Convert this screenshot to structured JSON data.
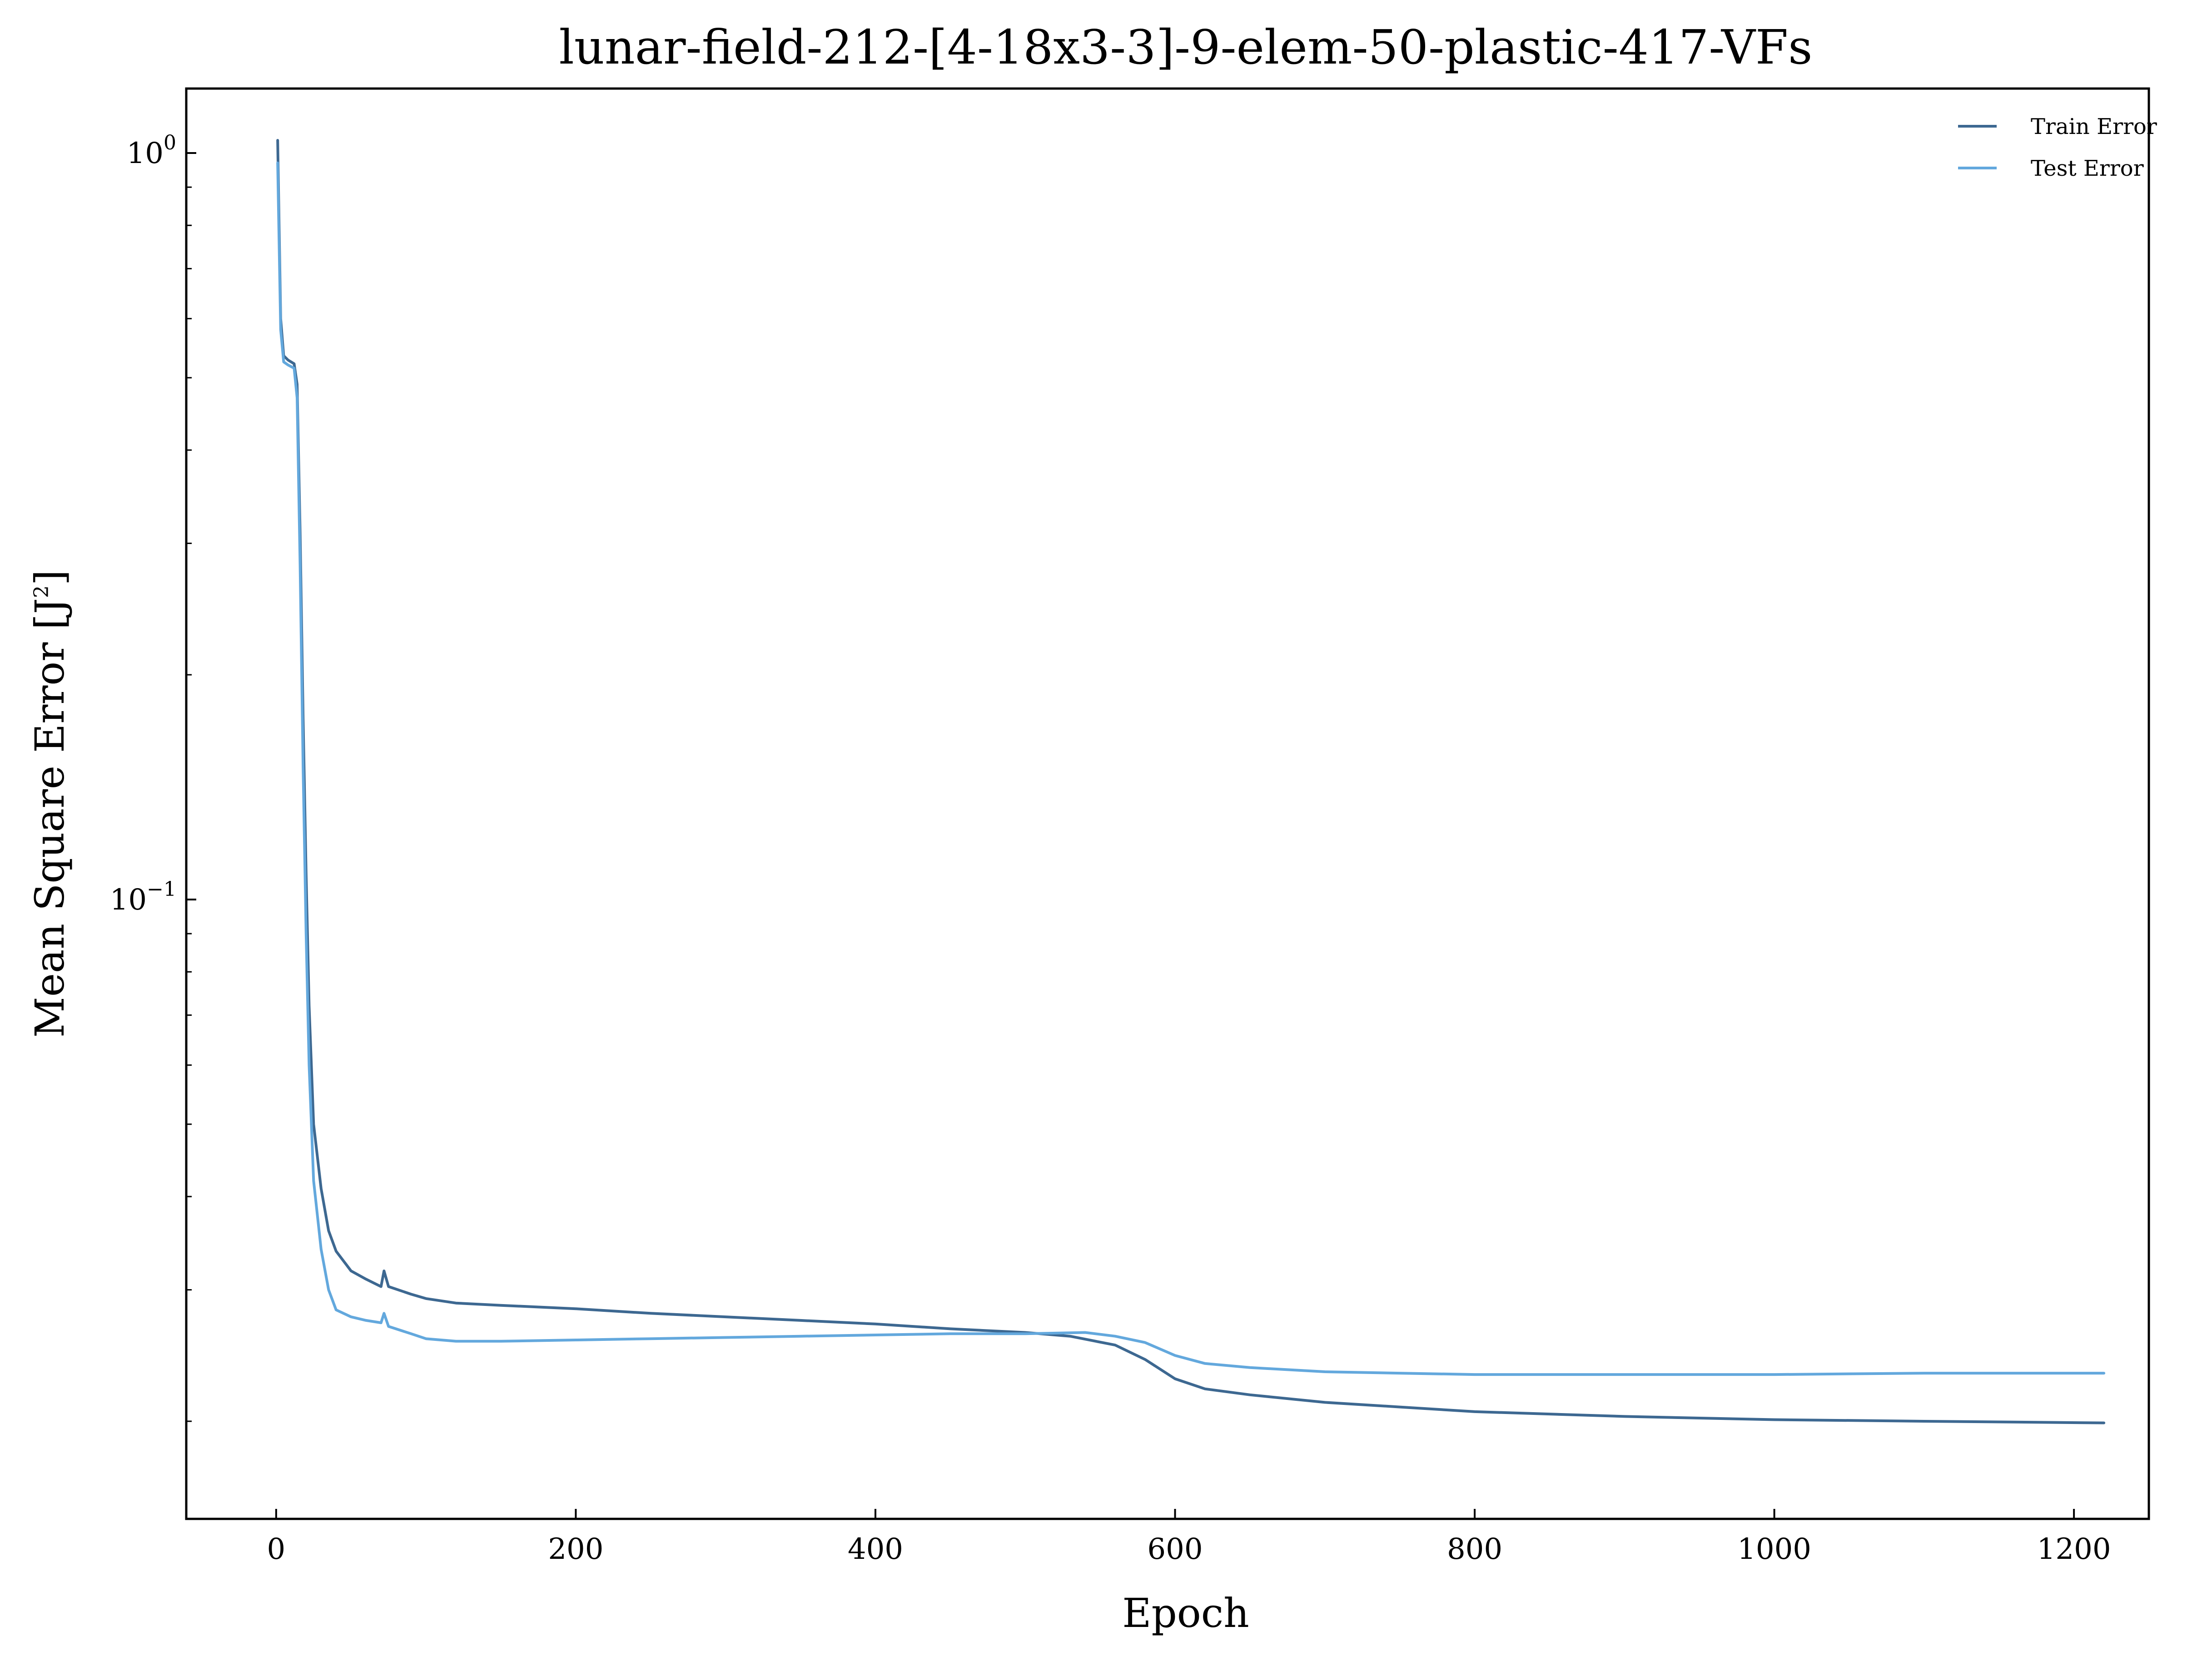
{
  "chart_data": {
    "type": "line",
    "title": "lunar-field-212-[4-18x3-3]-9-elem-50-plastic-417-VFs",
    "xlabel": "Epoch",
    "ylabel": "Mean Square Error [J",
    "ylabel_sup": "2",
    "ylabel_end": "]",
    "x_scale": "linear",
    "y_scale": "log",
    "xlim": [
      -60,
      1250
    ],
    "ylim": [
      0.0148,
      1.22
    ],
    "x_ticks": [
      0,
      200,
      400,
      600,
      800,
      1000,
      1200
    ],
    "y_ticks": [
      {
        "value": 1,
        "base": "10",
        "exp": "0"
      },
      {
        "value": 0.1,
        "base": "10",
        "exp": "−1"
      }
    ],
    "grid": false,
    "legend_position": "top-right",
    "series": [
      {
        "name": "Train Error",
        "color": "#3d6891",
        "points": [
          [
            1,
            1.04
          ],
          [
            3,
            0.6
          ],
          [
            5,
            0.535
          ],
          [
            8,
            0.528
          ],
          [
            12,
            0.522
          ],
          [
            14,
            0.49
          ],
          [
            16,
            0.31
          ],
          [
            18,
            0.175
          ],
          [
            20,
            0.108
          ],
          [
            22,
            0.072
          ],
          [
            25,
            0.05
          ],
          [
            30,
            0.041
          ],
          [
            35,
            0.036
          ],
          [
            40,
            0.0338
          ],
          [
            50,
            0.0318
          ],
          [
            60,
            0.031
          ],
          [
            70,
            0.0303
          ],
          [
            72,
            0.0318
          ],
          [
            75,
            0.0303
          ],
          [
            90,
            0.0296
          ],
          [
            100,
            0.0292
          ],
          [
            120,
            0.0288
          ],
          [
            150,
            0.0286
          ],
          [
            200,
            0.0283
          ],
          [
            250,
            0.0279
          ],
          [
            300,
            0.0276
          ],
          [
            350,
            0.0273
          ],
          [
            400,
            0.027
          ],
          [
            450,
            0.0266
          ],
          [
            500,
            0.0263
          ],
          [
            530,
            0.026
          ],
          [
            560,
            0.0253
          ],
          [
            580,
            0.0242
          ],
          [
            600,
            0.0228
          ],
          [
            620,
            0.0221
          ],
          [
            650,
            0.0217
          ],
          [
            700,
            0.0212
          ],
          [
            750,
            0.0209
          ],
          [
            800,
            0.0206
          ],
          [
            900,
            0.0203
          ],
          [
            1000,
            0.0201
          ],
          [
            1100,
            0.02
          ],
          [
            1220,
            0.0199
          ]
        ]
      },
      {
        "name": "Test Error",
        "color": "#63a8dd",
        "points": [
          [
            1,
            0.97
          ],
          [
            3,
            0.58
          ],
          [
            5,
            0.525
          ],
          [
            8,
            0.52
          ],
          [
            12,
            0.515
          ],
          [
            14,
            0.47
          ],
          [
            16,
            0.28
          ],
          [
            18,
            0.15
          ],
          [
            20,
            0.09
          ],
          [
            22,
            0.06
          ],
          [
            25,
            0.042
          ],
          [
            30,
            0.034
          ],
          [
            35,
            0.03
          ],
          [
            40,
            0.0282
          ],
          [
            50,
            0.0276
          ],
          [
            60,
            0.0273
          ],
          [
            70,
            0.0271
          ],
          [
            72,
            0.0279
          ],
          [
            75,
            0.0268
          ],
          [
            90,
            0.0262
          ],
          [
            100,
            0.0258
          ],
          [
            120,
            0.0256
          ],
          [
            150,
            0.0256
          ],
          [
            200,
            0.0257
          ],
          [
            250,
            0.0258
          ],
          [
            300,
            0.0259
          ],
          [
            350,
            0.026
          ],
          [
            400,
            0.0261
          ],
          [
            450,
            0.0262
          ],
          [
            500,
            0.0262
          ],
          [
            540,
            0.0263
          ],
          [
            560,
            0.026
          ],
          [
            580,
            0.0255
          ],
          [
            600,
            0.0245
          ],
          [
            620,
            0.0239
          ],
          [
            650,
            0.0236
          ],
          [
            700,
            0.0233
          ],
          [
            750,
            0.0232
          ],
          [
            800,
            0.0231
          ],
          [
            900,
            0.0231
          ],
          [
            1000,
            0.0231
          ],
          [
            1100,
            0.0232
          ],
          [
            1220,
            0.0232
          ]
        ]
      }
    ]
  }
}
